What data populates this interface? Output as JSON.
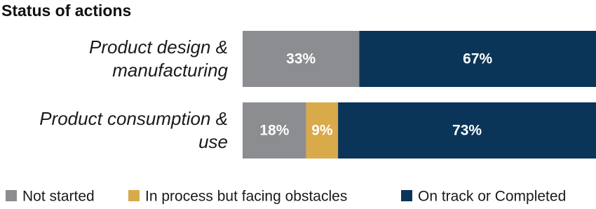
{
  "chart_data": {
    "type": "stacked-bar-horizontal",
    "title": "Status of actions",
    "categories": [
      "Product design & manufacturing",
      "Product consumption & use"
    ],
    "xlim": [
      0,
      100
    ],
    "series": [
      {
        "name": "Not started",
        "color": "#8c8d90",
        "values": [
          33,
          18
        ],
        "value_labels": [
          "33%",
          "18%"
        ]
      },
      {
        "name": "In process but facing obstacles",
        "color": "#d9aa4a",
        "values": [
          null,
          9
        ],
        "value_labels": [
          null,
          "9%"
        ]
      },
      {
        "name": "On track or Completed",
        "color": "#0b3558",
        "values": [
          67,
          73
        ],
        "value_labels": [
          "67%",
          "73%"
        ]
      }
    ]
  }
}
